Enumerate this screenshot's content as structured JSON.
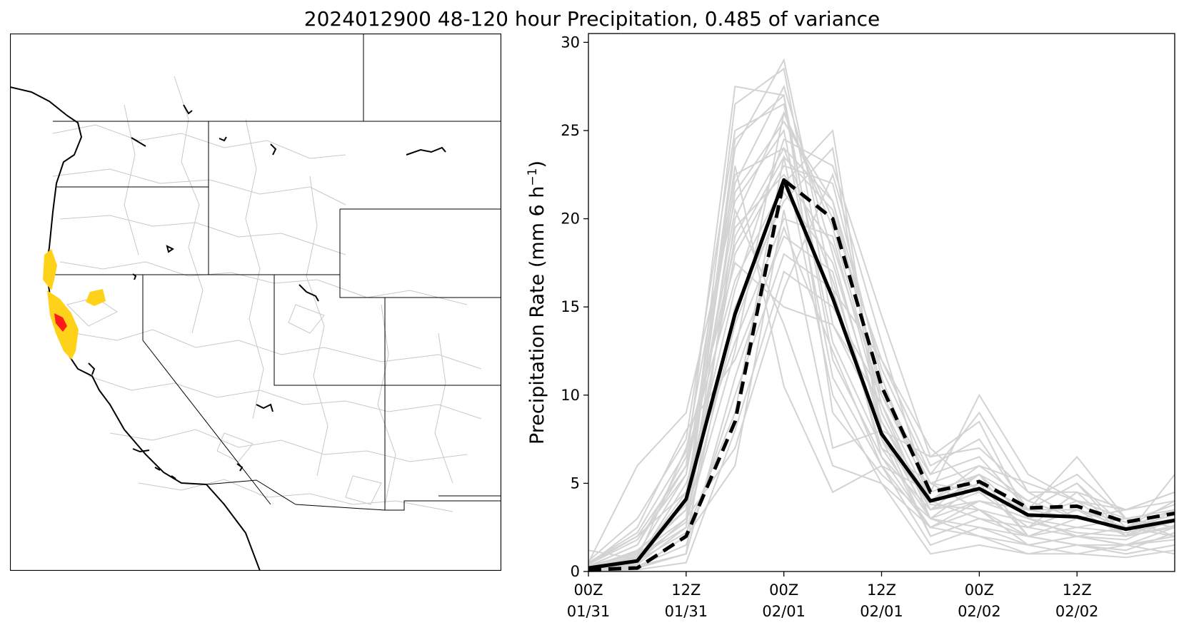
{
  "title": "2024012900 48-120 hour Precipitation, 0.485 of variance",
  "colors": {
    "ensemble_member": "#d3d3d3",
    "solid_mean": "#000000",
    "dashed_mean": "#000000",
    "map_high": "#ff1a1a",
    "map_mid": "#ffd21a",
    "map_lines": "#c8c8c8",
    "map_borders": "#000000"
  },
  "map": {
    "region": "Western United States",
    "highlight_levels": [
      "yellow",
      "red"
    ]
  },
  "chart_data": {
    "type": "line",
    "title": "2024012900 48-120 hour Precipitation, 0.485 of variance",
    "xlabel": "",
    "ylabel": "Precipitation Rate (mm 6 h",
    "ylabel_superscript": "−1",
    "ylabel_close": ")",
    "ylim": [
      0,
      30.5
    ],
    "yticks": [
      0,
      5,
      10,
      15,
      20,
      25,
      30
    ],
    "x_hours": [
      0,
      6,
      12,
      18,
      24,
      30,
      36,
      42,
      48,
      54,
      60,
      66,
      72
    ],
    "xlim": [
      0,
      72
    ],
    "xticks": [
      {
        "hour": 0,
        "time": "00Z",
        "date": "01/31"
      },
      {
        "hour": 12,
        "time": "12Z",
        "date": "01/31"
      },
      {
        "hour": 24,
        "time": "00Z",
        "date": "02/01"
      },
      {
        "hour": 36,
        "time": "12Z",
        "date": "02/01"
      },
      {
        "hour": 48,
        "time": "00Z",
        "date": "02/02"
      },
      {
        "hour": 60,
        "time": "12Z",
        "date": "02/02"
      }
    ],
    "grid": false,
    "legend": "none",
    "series_solid": [
      0.2,
      0.6,
      4.1,
      14.6,
      22.2,
      15.5,
      7.8,
      4.0,
      4.7,
      3.2,
      3.1,
      2.4,
      2.9
    ],
    "series_dashed": [
      0.1,
      0.2,
      2.0,
      8.5,
      22.2,
      20.0,
      10.5,
      4.5,
      5.1,
      3.6,
      3.7,
      2.8,
      3.3
    ],
    "ensemble_members": [
      [
        0.2,
        1.2,
        3.5,
        26.5,
        28.5,
        14.0,
        8.5,
        4.0,
        5.5,
        3.0,
        4.0,
        2.0,
        2.5
      ],
      [
        0.4,
        2.0,
        6.0,
        27.5,
        27.0,
        12.0,
        6.5,
        3.5,
        4.5,
        2.5,
        3.5,
        2.5,
        3.0
      ],
      [
        0.1,
        0.5,
        3.0,
        24.0,
        29.0,
        16.0,
        7.0,
        5.0,
        6.0,
        4.0,
        3.0,
        3.5,
        4.5
      ],
      [
        0.3,
        1.0,
        5.5,
        22.0,
        27.5,
        18.0,
        8.0,
        6.5,
        8.5,
        3.0,
        2.0,
        2.5,
        2.0
      ],
      [
        0.5,
        6.0,
        9.0,
        21.0,
        25.0,
        11.0,
        6.0,
        4.5,
        10.0,
        5.5,
        4.0,
        3.0,
        2.0
      ],
      [
        0.0,
        0.3,
        1.0,
        20.0,
        26.0,
        20.0,
        12.0,
        6.0,
        7.5,
        3.5,
        5.0,
        2.0,
        3.5
      ],
      [
        0.2,
        0.8,
        2.5,
        19.0,
        24.0,
        21.0,
        10.0,
        5.5,
        9.0,
        4.5,
        3.0,
        2.5,
        4.0
      ],
      [
        0.1,
        0.4,
        4.0,
        18.0,
        23.0,
        22.0,
        11.0,
        4.0,
        5.0,
        2.0,
        2.5,
        3.0,
        2.5
      ],
      [
        0.3,
        1.5,
        6.5,
        16.5,
        22.0,
        25.0,
        8.0,
        3.0,
        4.0,
        3.5,
        6.5,
        3.0,
        2.5
      ],
      [
        0.0,
        0.2,
        2.0,
        15.0,
        21.0,
        24.0,
        7.5,
        2.0,
        3.0,
        2.5,
        4.5,
        2.0,
        3.0
      ],
      [
        0.2,
        0.6,
        5.0,
        13.0,
        20.0,
        19.0,
        9.0,
        3.5,
        5.5,
        2.0,
        3.0,
        2.5,
        3.5
      ],
      [
        0.4,
        2.5,
        8.0,
        12.0,
        19.0,
        17.0,
        6.5,
        2.5,
        4.0,
        3.0,
        2.0,
        1.5,
        2.5
      ],
      [
        0.1,
        0.3,
        1.5,
        10.0,
        18.0,
        16.0,
        12.0,
        7.0,
        4.5,
        2.5,
        3.5,
        2.0,
        5.5
      ],
      [
        0.0,
        0.1,
        0.5,
        8.0,
        17.0,
        15.0,
        10.0,
        5.0,
        3.5,
        1.5,
        2.0,
        1.5,
        2.0
      ],
      [
        0.3,
        1.0,
        3.0,
        7.0,
        16.0,
        22.5,
        13.0,
        4.0,
        3.0,
        2.0,
        1.5,
        1.0,
        1.5
      ],
      [
        1.2,
        0.7,
        7.0,
        17.5,
        15.0,
        14.0,
        9.5,
        3.0,
        2.5,
        1.5,
        1.0,
        1.5,
        1.0
      ],
      [
        0.5,
        2.0,
        4.5,
        20.5,
        14.0,
        6.0,
        5.0,
        2.5,
        2.0,
        1.0,
        1.0,
        0.8,
        1.2
      ],
      [
        0.2,
        0.9,
        3.5,
        23.0,
        10.5,
        4.5,
        6.0,
        1.5,
        2.5,
        2.0,
        1.5,
        1.0,
        1.5
      ],
      [
        0.0,
        0.2,
        2.0,
        6.0,
        20.5,
        7.0,
        8.0,
        2.0,
        3.0,
        2.5,
        2.0,
        1.5,
        1.8
      ],
      [
        0.3,
        1.5,
        6.0,
        18.5,
        23.5,
        10.0,
        5.0,
        1.0,
        1.5,
        1.0,
        1.5,
        1.2,
        2.2
      ],
      [
        0.6,
        3.0,
        7.5,
        25.0,
        26.5,
        13.0,
        7.0,
        3.0,
        2.0,
        1.5,
        2.0,
        1.8,
        3.0
      ],
      [
        0.1,
        0.4,
        2.5,
        21.5,
        25.5,
        21.0,
        11.5,
        5.5,
        6.5,
        3.5,
        3.5,
        2.8,
        3.8
      ],
      [
        0.2,
        0.7,
        4.5,
        16.0,
        24.5,
        23.0,
        14.5,
        6.5,
        7.0,
        4.5,
        4.5,
        3.5,
        4.0
      ],
      [
        0.4,
        1.8,
        5.5,
        19.5,
        22.5,
        18.5,
        10.0,
        4.5,
        5.5,
        4.0,
        5.5,
        3.0,
        3.5
      ],
      [
        0.1,
        0.5,
        3.0,
        14.0,
        21.5,
        17.5,
        8.5,
        3.5,
        4.0,
        3.0,
        2.5,
        2.2,
        2.8
      ],
      [
        0.0,
        0.2,
        1.0,
        11.0,
        19.5,
        12.5,
        6.0,
        2.5,
        3.5,
        2.0,
        1.5,
        1.5,
        2.0
      ],
      [
        0.3,
        1.1,
        3.8,
        24.5,
        27.0,
        9.0,
        5.5,
        3.0,
        5.0,
        3.5,
        3.0,
        2.5,
        3.2
      ],
      [
        0.2,
        0.8,
        2.8,
        12.5,
        26.0,
        19.5,
        9.5,
        4.0,
        6.0,
        5.0,
        4.0,
        3.5,
        4.5
      ],
      [
        0.1,
        0.6,
        2.2,
        9.0,
        23.5,
        20.5,
        10.5,
        5.0,
        4.5,
        3.5,
        5.0,
        2.5,
        3.0
      ],
      [
        0.5,
        2.2,
        6.8,
        22.5,
        24.0,
        16.5,
        7.5,
        3.8,
        3.5,
        2.8,
        2.2,
        2.0,
        2.6
      ]
    ]
  }
}
